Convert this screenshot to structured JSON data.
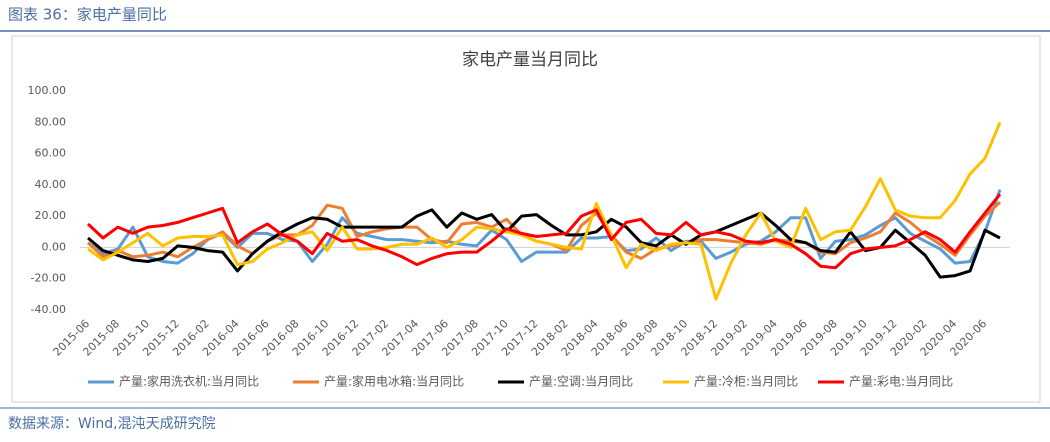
{
  "header": {
    "title": "图表 36：家电产量同比"
  },
  "chart_data": {
    "type": "line",
    "title": "家电产量当月同比",
    "categories": [
      "2015-06",
      null,
      "2015-08",
      null,
      "2015-10",
      null,
      "2015-12",
      null,
      "2016-02",
      null,
      "2016-04",
      null,
      "2016-06",
      null,
      "2016-08",
      null,
      "2016-10",
      null,
      "2016-12",
      null,
      "2017-02",
      null,
      "2017-04",
      null,
      "2017-06",
      null,
      "2017-08",
      null,
      "2017-10",
      null,
      "2017-12",
      null,
      "2018-02",
      null,
      "2018-04",
      null,
      "2018-06",
      null,
      "2018-08",
      null,
      "2018-10",
      null,
      "2018-12",
      null,
      "2019-02",
      null,
      "2019-04",
      null,
      "2019-06",
      null,
      "2019-08",
      null,
      "2019-10",
      null,
      "2019-12",
      null,
      "2020-02",
      null,
      "2020-04",
      null,
      "2020-06",
      null
    ],
    "series": [
      {
        "name": "产量:家用洗衣机:当月同比",
        "color": "#5b9bd5",
        "values": [
          3,
          -4,
          -1,
          13,
          -6,
          -9,
          -10,
          -4,
          5,
          9,
          0,
          9,
          9,
          5,
          4,
          -9,
          2,
          19,
          9,
          7,
          5,
          5,
          4,
          3,
          4,
          2,
          1,
          11,
          5,
          -9,
          -3,
          -3,
          -3,
          6,
          6,
          7,
          -2,
          -1,
          6,
          -2,
          4,
          4,
          -7,
          -3,
          2,
          4,
          10,
          19,
          19,
          -7,
          4,
          5,
          8,
          14,
          19,
          9,
          4,
          -1,
          -10,
          -9,
          10,
          37
        ]
      },
      {
        "name": "产量:家用电冰箱:当月同比",
        "color": "#ed7d31",
        "values": [
          3,
          -6,
          -2,
          -6,
          -5,
          -3,
          -6,
          0,
          5,
          10,
          1,
          -4,
          4,
          8,
          8,
          14,
          27,
          25,
          7,
          10,
          12,
          13,
          13,
          5,
          3,
          15,
          16,
          13,
          18,
          8,
          4,
          2,
          -2,
          14,
          22,
          8,
          -3,
          -7,
          -1,
          1,
          3,
          5,
          5,
          4,
          3,
          2,
          5,
          4,
          3,
          -3,
          -4,
          3,
          6,
          10,
          22,
          16,
          8,
          2,
          -5,
          8,
          20,
          29
        ]
      },
      {
        "name": "产量:空调:当月同比",
        "color": "#000000",
        "values": [
          6,
          -2,
          -5,
          -8,
          -9,
          -7,
          1,
          0,
          -2,
          -3,
          -15,
          -4,
          4,
          10,
          15,
          19,
          18,
          13,
          13,
          13,
          13,
          13,
          20,
          24,
          13,
          22,
          18,
          21,
          10,
          20,
          21,
          14,
          8,
          8,
          10,
          18,
          13,
          3,
          1,
          8,
          2,
          8,
          10,
          14,
          18,
          22,
          14,
          5,
          3,
          -2,
          -3,
          10,
          -2,
          0,
          11,
          3,
          -5,
          -19,
          -18,
          -15,
          11,
          6
        ]
      },
      {
        "name": "产量:冷柜:当月同比",
        "color": "#ffc000",
        "values": [
          -1,
          -8,
          -3,
          3,
          9,
          1,
          6,
          7,
          7,
          8,
          -11,
          -9,
          -1,
          3,
          8,
          10,
          -2,
          13,
          -1,
          -1,
          0,
          2,
          2,
          6,
          0,
          5,
          13,
          12,
          10,
          8,
          4,
          2,
          0,
          -1,
          28,
          8,
          -13,
          2,
          -2,
          2,
          3,
          2,
          -33,
          -10,
          8,
          22,
          4,
          0,
          25,
          5,
          10,
          11,
          26,
          44,
          24,
          20,
          19,
          19,
          30,
          47,
          57,
          80
        ]
      },
      {
        "name": "产量:彩电:当月同比",
        "color": "#ff0000",
        "values": [
          15,
          6,
          13,
          9,
          13,
          14,
          16,
          19,
          22,
          25,
          3,
          10,
          15,
          8,
          4,
          -4,
          9,
          4,
          5,
          1,
          -2,
          -6,
          -11,
          -7,
          -4,
          -3,
          -3,
          4,
          12,
          9,
          7,
          8,
          9,
          20,
          24,
          5,
          16,
          18,
          9,
          8,
          16,
          8,
          10,
          8,
          4,
          3,
          5,
          2,
          -4,
          -12,
          -13,
          -4,
          -1,
          0,
          1,
          5,
          10,
          5,
          -3,
          10,
          22,
          34
        ]
      }
    ],
    "ylim": [
      -40,
      100
    ],
    "yticks": [
      {
        "value": -40,
        "label": "-40.00"
      },
      {
        "value": -20,
        "label": "-20.00"
      },
      {
        "value": 0,
        "label": "0.00"
      },
      {
        "value": 20,
        "label": "20.00"
      },
      {
        "value": 40,
        "label": "40.00"
      },
      {
        "value": 60,
        "label": "60.00"
      },
      {
        "value": 80,
        "label": "80.00"
      },
      {
        "value": 100,
        "label": "100.00"
      }
    ],
    "grid": false,
    "legend": "bottom"
  },
  "footer": {
    "source": "数据来源：Wind,混沌天成研究院"
  }
}
